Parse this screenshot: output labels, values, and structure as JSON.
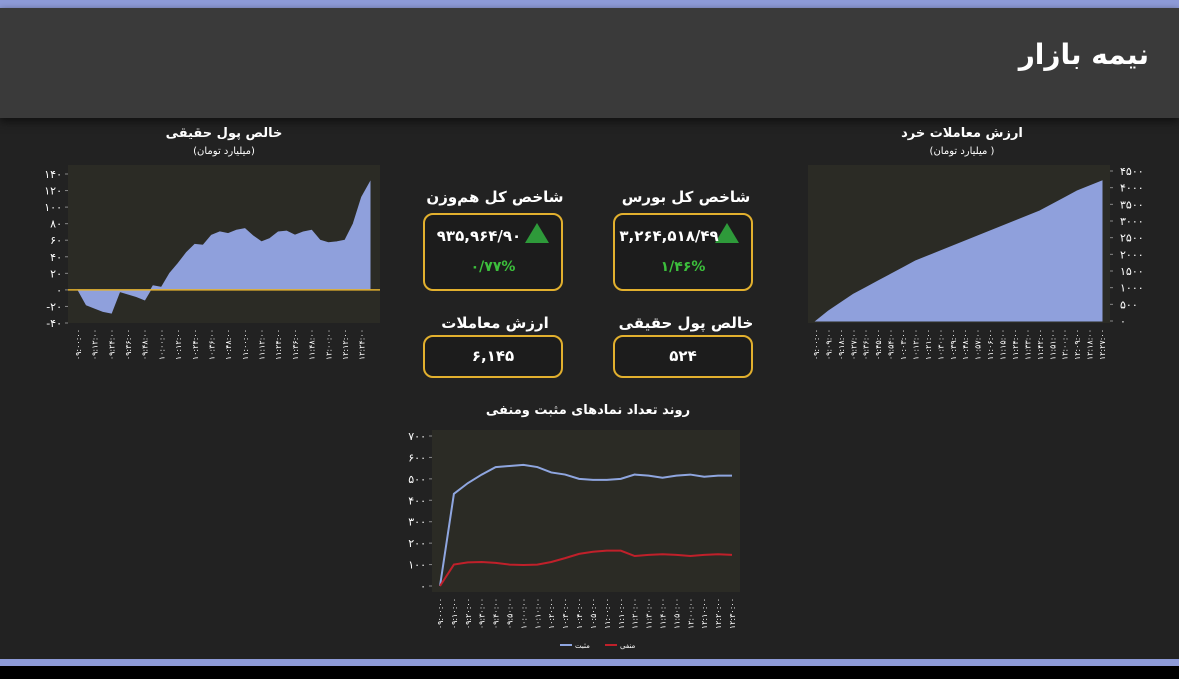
{
  "header": {
    "title": "نیمه بازار"
  },
  "cards": [
    {
      "title": "شاخص کل بورس",
      "value": "۳,۲۶۴,۵۱۸/۴۹",
      "change": "۱/۴۶%"
    },
    {
      "title": "شاخص کل هم‌وزن",
      "value": "۹۳۵,۹۶۴/۹۰",
      "change": "۰/۷۷%"
    },
    {
      "title": "خالص پول حقیقی",
      "value": "۵۲۴"
    },
    {
      "title": "ارزش معاملات",
      "value": "۶,۱۴۵"
    }
  ],
  "chart_data": [
    {
      "type": "area",
      "title": "خالص پول حقیقی",
      "subtitle": "(میلیارد تومان)",
      "color": "#8fa0dc",
      "categories": [
        "۰۹:۰۰:۰۰",
        null,
        "۰۹:۱۲:۰۰",
        null,
        "۰۹:۲۴:۰۰",
        null,
        "۰۹:۳۶:۰۰",
        null,
        "۰۹:۴۸:۰۰",
        null,
        "۱۰:۰۰:۰۰",
        null,
        "۱۰:۱۲:۰۰",
        null,
        "۱۰:۲۴:۰۰",
        null,
        "۱۰:۳۶:۰۰",
        null,
        "۱۰:۴۸:۰۰",
        null,
        "۱۱:۰۰:۰۰",
        null,
        "۱۱:۱۲:۰۰",
        null,
        "۱۱:۲۴:۰۰",
        null,
        "۱۱:۳۶:۰۰",
        null,
        "۱۱:۴۸:۰۰",
        null,
        "۱۲:۰۰:۰۰",
        null,
        "۱۲:۱۲:۰۰",
        null,
        "۱۲:۲۴:۰۰",
        null
      ],
      "values": [
        0,
        -18,
        -22,
        -26,
        -28,
        -2,
        -5,
        -8,
        -12,
        5,
        3,
        20,
        32,
        45,
        55,
        54,
        66,
        70,
        68,
        72,
        74,
        65,
        58,
        62,
        70,
        71,
        66,
        70,
        72,
        60,
        57,
        58,
        60,
        80,
        112,
        130
      ],
      "ylim": [
        -40,
        140
      ],
      "yticks": [
        {
          "value": 140,
          "label": "۱۴۰"
        },
        {
          "value": 120,
          "label": "۱۲۰"
        },
        {
          "value": 100,
          "label": "۱۰۰"
        },
        {
          "value": 80,
          "label": "۸۰"
        },
        {
          "value": 60,
          "label": "۶۰"
        },
        {
          "value": 40,
          "label": "۴۰"
        },
        {
          "value": 20,
          "label": "۲۰"
        },
        {
          "value": 0,
          "label": "۰"
        },
        {
          "value": -20,
          "label": "-۲۰"
        },
        {
          "value": -40,
          "label": "-۴۰"
        }
      ],
      "y_axis_side": "left"
    },
    {
      "type": "area",
      "title": "ارزش معاملات خرد",
      "subtitle": "( میلیارد تومان)",
      "color": "#8fa0dc",
      "categories": [
        "۰۹:۰۰:۰۰",
        "۰۹:۰۹:۰۰",
        "۰۹:۱۸:۰۰",
        "۰۹:۲۷:۰۰",
        "۰۹:۳۶:۰۰",
        "۰۹:۴۵:۰۰",
        "۰۹:۵۴:۰۰",
        "۱۰:۰۳:۰۰",
        "۱۰:۱۲:۰۰",
        "۱۰:۲۱:۰۰",
        "۱۰:۳۰:۰۰",
        "۱۰:۳۹:۰۰",
        "۱۰:۴۸:۰۰",
        "۱۰:۵۷:۰۰",
        "۱۱:۰۶:۰۰",
        "۱۱:۱۵:۰۰",
        "۱۱:۲۴:۰۰",
        "۱۱:۳۳:۰۰",
        "۱۱:۴۲:۰۰",
        "۱۱:۵۱:۰۰",
        "۱۲:۰۰:۰۰",
        "۱۲:۰۹:۰۰",
        "۱۲:۱۸:۰۰",
        "۱۲:۲۷:۰۰"
      ],
      "values": [
        0,
        300,
        550,
        800,
        1000,
        1200,
        1400,
        1600,
        1800,
        1950,
        2100,
        2250,
        2400,
        2550,
        2700,
        2850,
        3000,
        3150,
        3300,
        3500,
        3700,
        3900,
        4050,
        4200
      ],
      "ylim": [
        0,
        4500
      ],
      "yticks": [
        {
          "value": 4500,
          "label": "۴۵۰۰"
        },
        {
          "value": 4000,
          "label": "۴۰۰۰"
        },
        {
          "value": 3500,
          "label": "۳۵۰۰"
        },
        {
          "value": 3000,
          "label": "۳۰۰۰"
        },
        {
          "value": 2500,
          "label": "۲۵۰۰"
        },
        {
          "value": 2000,
          "label": "۲۰۰۰"
        },
        {
          "value": 1500,
          "label": "۱۵۰۰"
        },
        {
          "value": 1000,
          "label": "۱۰۰۰"
        },
        {
          "value": 500,
          "label": "۵۰۰"
        },
        {
          "value": 0,
          "label": "۰"
        }
      ],
      "y_axis_side": "right"
    },
    {
      "type": "line",
      "title": "روند تعداد نمادهای مثبت ومنفی",
      "categories": [
        "۰۹:۰۰:۰۰",
        "۰۹:۱۰:۰۰",
        "۰۹:۲۰:۰۰",
        "۰۹:۳۰:۰۰",
        "۰۹:۴۰:۰۰",
        "۰۹:۵۰:۰۰",
        "۱۰:۰۰:۰۰",
        "۱۰:۱۰:۰۰",
        "۱۰:۲۰:۰۰",
        "۱۰:۳۰:۰۰",
        "۱۰:۴۰:۰۰",
        "۱۰:۵۰:۰۰",
        "۱۱:۰۰:۰۰",
        "۱۱:۱۰:۰۰",
        "۱۱:۲۰:۰۰",
        "۱۱:۳۰:۰۰",
        "۱۱:۴۰:۰۰",
        "۱۱:۵۰:۰۰",
        "۱۲:۰۰:۰۰",
        "۱۲:۱۰:۰۰",
        "۱۲:۲۰:۰۰",
        "۱۲:۳۰:۰۰"
      ],
      "series": [
        {
          "name": "مثبت",
          "color": "#8fa6e0",
          "values": [
            0,
            430,
            480,
            520,
            555,
            560,
            565,
            555,
            530,
            520,
            500,
            495,
            495,
            500,
            520,
            515,
            505,
            515,
            520,
            510,
            515,
            515
          ]
        },
        {
          "name": "منفی",
          "color": "#c0202a",
          "values": [
            0,
            100,
            110,
            112,
            108,
            100,
            98,
            100,
            112,
            130,
            150,
            160,
            165,
            165,
            140,
            145,
            148,
            145,
            140,
            145,
            148,
            145
          ]
        }
      ],
      "ylim": [
        0,
        700
      ],
      "yticks": [
        {
          "value": 700,
          "label": "۷۰۰"
        },
        {
          "value": 600,
          "label": "۶۰۰"
        },
        {
          "value": 500,
          "label": "۵۰۰"
        },
        {
          "value": 400,
          "label": "۴۰۰"
        },
        {
          "value": 300,
          "label": "۳۰۰"
        },
        {
          "value": 200,
          "label": "۲۰۰"
        },
        {
          "value": 100,
          "label": "۱۰۰"
        },
        {
          "value": 0,
          "label": "۰"
        }
      ],
      "y_axis_side": "left"
    }
  ]
}
